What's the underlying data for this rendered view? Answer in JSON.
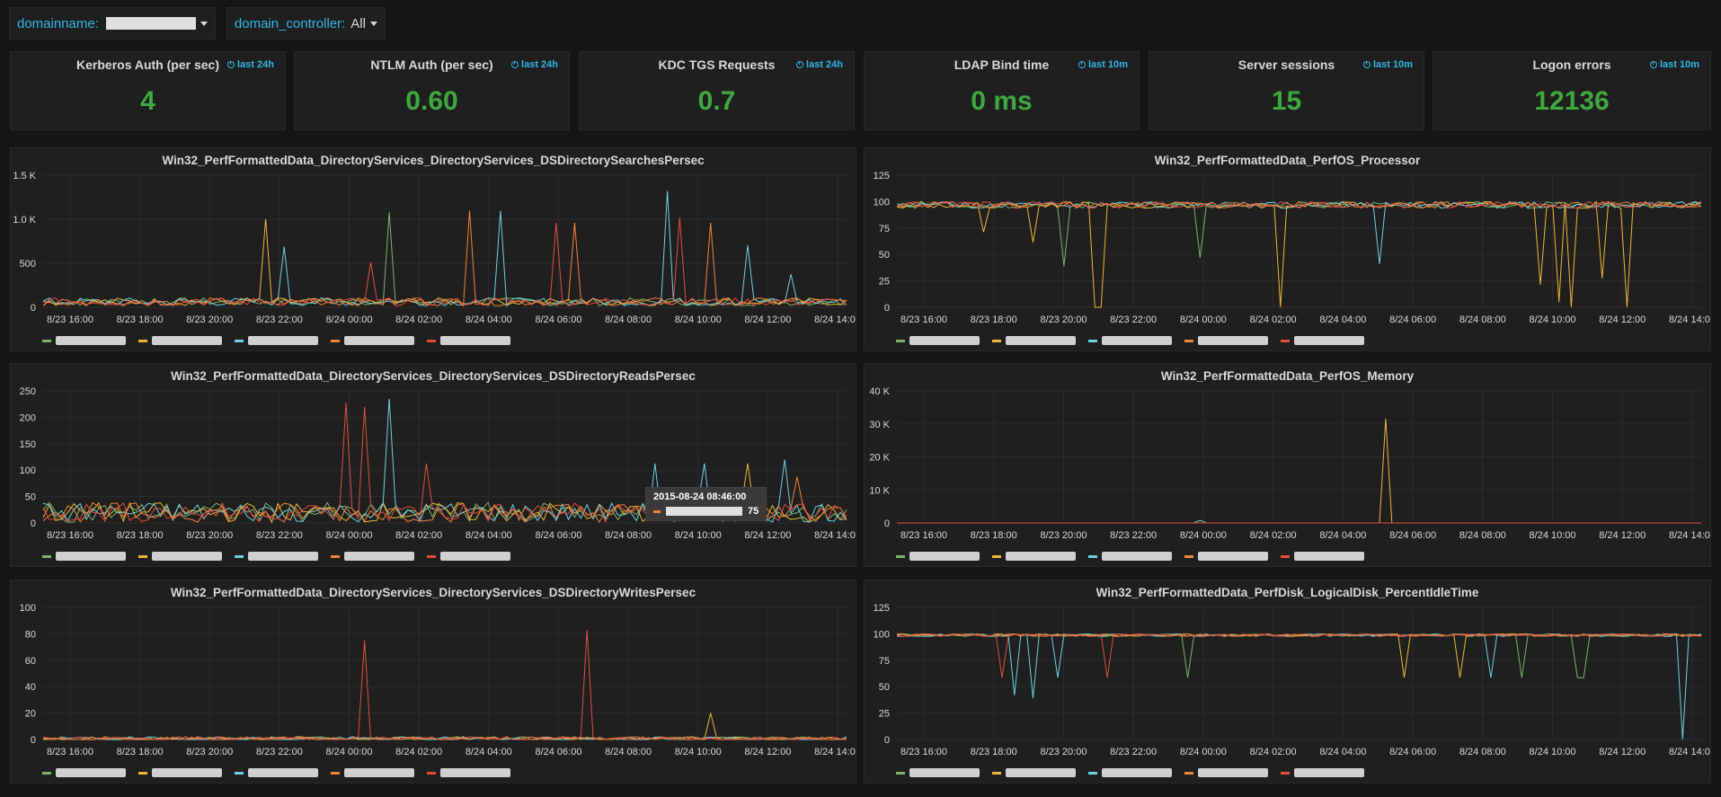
{
  "variables": {
    "domainname_label": "domainname:",
    "domain_controller_label": "domain_controller:",
    "domain_controller_value": "All"
  },
  "stats": [
    {
      "title": "Kerberos Auth (per sec)",
      "time": "last 24h",
      "value": "4"
    },
    {
      "title": "NTLM Auth (per sec)",
      "time": "last 24h",
      "value": "0.60"
    },
    {
      "title": "KDC TGS Requests",
      "time": "last 24h",
      "value": "0.7"
    },
    {
      "title": "LDAP Bind time",
      "time": "last 10m",
      "value": "0 ms"
    },
    {
      "title": "Server sessions",
      "time": "last 10m",
      "value": "15"
    },
    {
      "title": "Logon errors",
      "time": "last 10m",
      "value": "12136"
    }
  ],
  "colors": {
    "green": "#7eb26d",
    "yellow": "#eab839",
    "cyan": "#6ed0e0",
    "orange": "#ef843c",
    "red": "#e24d42",
    "stat": "#3ea83e",
    "accent": "#33b5e5"
  },
  "x_ticks": [
    "8/23 16:00",
    "8/23 18:00",
    "8/23 20:00",
    "8/23 22:00",
    "8/24 00:00",
    "8/24 02:00",
    "8/24 04:00",
    "8/24 06:00",
    "8/24 08:00",
    "8/24 10:00",
    "8/24 12:00",
    "8/24 14:00"
  ],
  "panels": [
    {
      "title": "Win32_PerfFormattedData_DirectoryServices_DirectoryServices_DSDirectorySearchesPersec",
      "y_ticks": [
        "0",
        "500",
        "1.0 K",
        "1.5 K"
      ],
      "ymax": 1500
    },
    {
      "title": "Win32_PerfFormattedData_PerfOS_Processor",
      "y_ticks": [
        "0",
        "25",
        "50",
        "75",
        "100",
        "125"
      ],
      "ymax": 125
    },
    {
      "title": "Win32_PerfFormattedData_DirectoryServices_DirectoryServices_DSDirectoryReadsPersec",
      "y_ticks": [
        "0",
        "50",
        "100",
        "150",
        "200",
        "250"
      ],
      "ymax": 250
    },
    {
      "title": "Win32_PerfFormattedData_PerfOS_Memory",
      "y_ticks": [
        "0",
        "10 K",
        "20 K",
        "30 K",
        "40 K"
      ],
      "ymax": 40000
    },
    {
      "title": "Win32_PerfFormattedData_DirectoryServices_DirectoryServices_DSDirectoryWritesPersec",
      "y_ticks": [
        "0",
        "20",
        "40",
        "60",
        "80",
        "100"
      ],
      "ymax": 100
    },
    {
      "title": "Win32_PerfFormattedData_PerfDisk_LogicalDisk_PercentIdleTime",
      "y_ticks": [
        "0",
        "25",
        "50",
        "75",
        "100",
        "125"
      ],
      "ymax": 125
    }
  ],
  "tooltip": {
    "time": "2015-08-24 08:46:00",
    "value": "75"
  }
}
